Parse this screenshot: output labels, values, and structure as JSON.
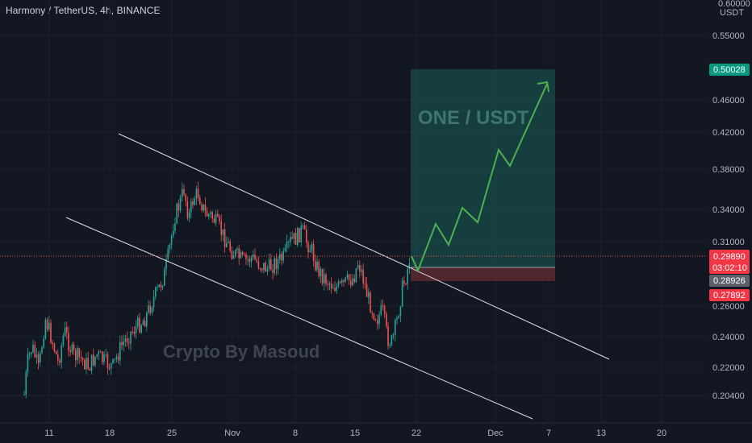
{
  "header": {
    "symbol_title": "Harmony / TetherUS, 4h, BINANCE"
  },
  "price_axis": {
    "currency": "USDT",
    "top_label": "0.60000",
    "ticks": [
      "0.55000",
      "0.46000",
      "0.42000",
      "0.38000",
      "0.34000",
      "0.31000",
      "0.26000",
      "0.24000",
      "0.22000",
      "0.20400"
    ]
  },
  "time_axis": {
    "ticks": [
      "11",
      "18",
      "25",
      "Nov",
      "8",
      "15",
      "22",
      "Dec",
      "7",
      "13",
      "20"
    ]
  },
  "badges": {
    "target_price": "0.50028",
    "last_price": "0.29890",
    "countdown": "03:02:10",
    "entry_price": "0.28926",
    "stop_price": "0.27892"
  },
  "annotations": {
    "pair_label": "ONE / USDT",
    "author_watermark": "Crypto By Masoud"
  },
  "colors": {
    "background": "#131722",
    "up": "#26a69a",
    "down": "#ef5350",
    "target_zone": "#1b5e57",
    "stop_zone": "#5a2a30",
    "projection": "#4caf50",
    "channel": "#e0e3eb"
  }
}
